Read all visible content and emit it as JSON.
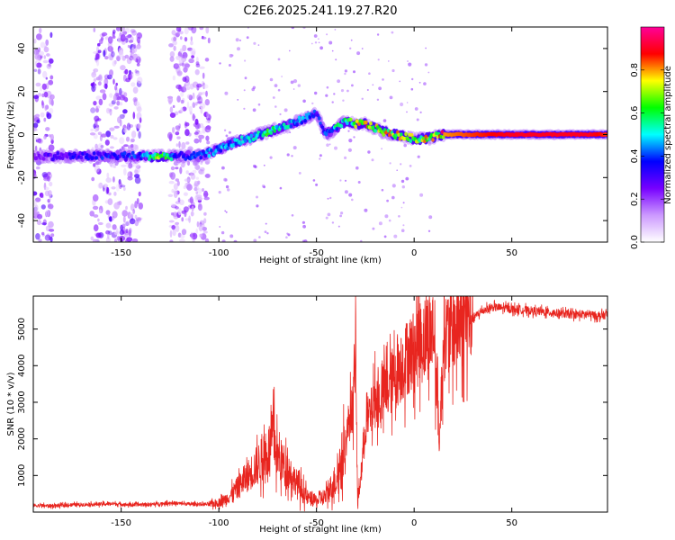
{
  "title": "C2E6.2025.241.19.27.R20",
  "colors": {
    "snr_line": "#e8251f",
    "frame": "#000000",
    "background": "#ffffff"
  },
  "chart_data": [
    {
      "type": "heatmap",
      "name": "spectrogram",
      "xlabel": "Height of straight line (km)",
      "ylabel": "Frequency (Hz)",
      "xlim": [
        -195,
        99
      ],
      "ylim": [
        -50,
        50
      ],
      "xticks": [
        -150,
        -100,
        -50,
        0,
        50
      ],
      "yticks": [
        -40,
        -20,
        0,
        20,
        40
      ],
      "colorbar": {
        "label": "Normalized spectral amplitude",
        "range": [
          0,
          1
        ],
        "ticks": [
          0.0,
          0.2,
          0.4,
          0.6,
          0.8
        ],
        "tick_labels": [
          "0.0",
          "0.2",
          "0.4",
          "0.6",
          "0.8"
        ],
        "colormap": [
          "#ffffff",
          "#cc99ff",
          "#7700ff",
          "#0000ff",
          "#00ffff",
          "#00ff00",
          "#ffff00",
          "#ff0000",
          "#ff0099"
        ]
      },
      "ridge": [
        {
          "x": -195,
          "f": -10,
          "a": 0.25
        },
        {
          "x": -180,
          "f": -10,
          "a": 0.3
        },
        {
          "x": -160,
          "f": -10,
          "a": 0.35
        },
        {
          "x": -150,
          "f": -10,
          "a": 0.35
        },
        {
          "x": -140,
          "f": -10,
          "a": 0.4
        },
        {
          "x": -130,
          "f": -10,
          "a": 0.7
        },
        {
          "x": -120,
          "f": -10,
          "a": 0.3
        },
        {
          "x": -110,
          "f": -10,
          "a": 0.4
        },
        {
          "x": -100,
          "f": -7,
          "a": 0.45
        },
        {
          "x": -95,
          "f": -5,
          "a": 0.45
        },
        {
          "x": -90,
          "f": -3,
          "a": 0.5
        },
        {
          "x": -85,
          "f": -2,
          "a": 0.45
        },
        {
          "x": -80,
          "f": 0,
          "a": 0.5
        },
        {
          "x": -75,
          "f": 1,
          "a": 0.55
        },
        {
          "x": -70,
          "f": 3,
          "a": 0.5
        },
        {
          "x": -65,
          "f": 4,
          "a": 0.5
        },
        {
          "x": -60,
          "f": 6,
          "a": 0.45
        },
        {
          "x": -55,
          "f": 8,
          "a": 0.4
        },
        {
          "x": -50,
          "f": 10,
          "a": 0.35
        },
        {
          "x": -45,
          "f": 0,
          "a": 0.4
        },
        {
          "x": -40,
          "f": 3,
          "a": 0.5
        },
        {
          "x": -35,
          "f": 6,
          "a": 0.55
        },
        {
          "x": -30,
          "f": 5,
          "a": 0.7
        },
        {
          "x": -25,
          "f": 5,
          "a": 0.75
        },
        {
          "x": -20,
          "f": 3,
          "a": 0.7
        },
        {
          "x": -15,
          "f": 1,
          "a": 0.7
        },
        {
          "x": -10,
          "f": 0,
          "a": 0.75
        },
        {
          "x": -5,
          "f": -1,
          "a": 0.75
        },
        {
          "x": 0,
          "f": -2,
          "a": 0.7
        },
        {
          "x": 5,
          "f": -2,
          "a": 0.7
        },
        {
          "x": 10,
          "f": -1,
          "a": 0.75
        },
        {
          "x": 15,
          "f": 0,
          "a": 0.8
        },
        {
          "x": 30,
          "f": 0,
          "a": 0.85
        },
        {
          "x": 50,
          "f": 0,
          "a": 0.9
        },
        {
          "x": 70,
          "f": 0,
          "a": 0.9
        },
        {
          "x": 90,
          "f": 0,
          "a": 0.9
        },
        {
          "x": 99,
          "f": 0,
          "a": 0.85
        }
      ],
      "noise_bands": [
        {
          "x_from": -195,
          "x_to": -185,
          "a": 0.3
        },
        {
          "x_from": -165,
          "x_to": -140,
          "a": 0.3
        },
        {
          "x_from": -125,
          "x_to": -105,
          "a": 0.25
        }
      ]
    },
    {
      "type": "line",
      "name": "snr",
      "xlabel": "Height of straight line (km)",
      "ylabel": "SNR (10 * v/v)",
      "xlim": [
        -195,
        99
      ],
      "ylim": [
        0,
        5900
      ],
      "xticks": [
        -150,
        -100,
        -50,
        0,
        50
      ],
      "yticks": [
        1000,
        2000,
        3000,
        4000,
        5000
      ],
      "series": [
        {
          "name": "SNR",
          "x": [
            -195,
            -185,
            -175,
            -165,
            -155,
            -145,
            -135,
            -125,
            -115,
            -105,
            -100,
            -95,
            -90,
            -85,
            -80,
            -75,
            -72,
            -70,
            -65,
            -60,
            -55,
            -50,
            -45,
            -40,
            -36,
            -33,
            -31,
            -30,
            -29,
            -27,
            -25,
            -22,
            -20,
            -18,
            -15,
            -12,
            -10,
            -8,
            -5,
            -3,
            0,
            2,
            5,
            8,
            10,
            12,
            13,
            15,
            18,
            20,
            22,
            25,
            28,
            30,
            35,
            40,
            50,
            60,
            70,
            80,
            90,
            95,
            99
          ],
          "y": [
            180,
            170,
            200,
            210,
            230,
            200,
            210,
            250,
            220,
            210,
            260,
            400,
            700,
            1000,
            1300,
            1600,
            2100,
            1500,
            1200,
            800,
            400,
            300,
            450,
            900,
            1600,
            2600,
            3000,
            4700,
            300,
            1100,
            2400,
            2700,
            3100,
            3000,
            3300,
            3500,
            3700,
            3900,
            4100,
            4300,
            4400,
            4600,
            4700,
            4900,
            5000,
            3000,
            1900,
            4800,
            4900,
            5050,
            5100,
            5200,
            5250,
            5300,
            5500,
            5600,
            5550,
            5500,
            5450,
            5400,
            5400,
            5350,
            5400
          ],
          "noise_amplitude": 300
        }
      ]
    }
  ]
}
